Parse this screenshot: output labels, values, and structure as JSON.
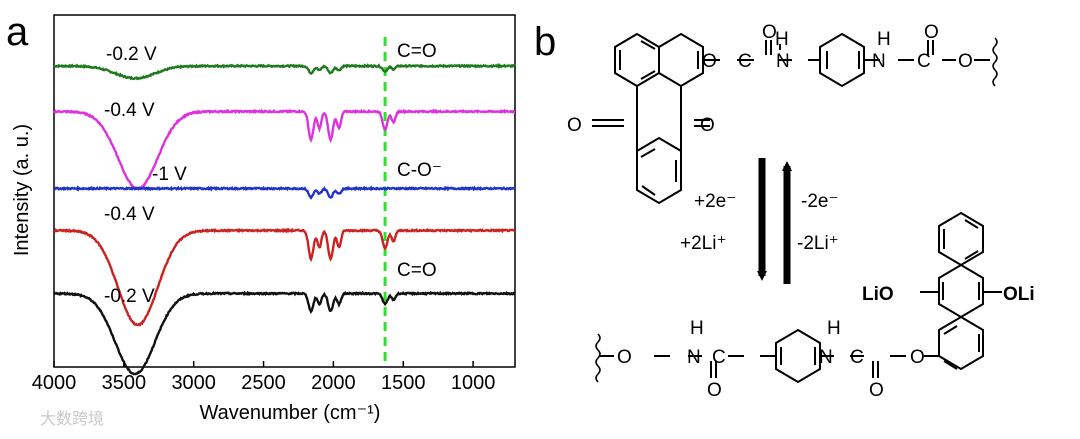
{
  "panel_a_label": "a",
  "panel_b_label": "b",
  "chart_data": {
    "type": "line",
    "title": "",
    "xlabel": "Wavenumber (cm⁻¹)",
    "ylabel": "Intensity (a. u.)",
    "xlim": [
      4000,
      700
    ],
    "x_reversed": true,
    "x_ticks": [
      4000,
      3500,
      3000,
      2500,
      2000,
      1500,
      1000
    ],
    "y_ticks_shown": false,
    "reference_line": {
      "x": 1630,
      "style": "dashed",
      "color": "#33dd33"
    },
    "series": [
      {
        "label_on_plot": "-0.2 V",
        "color": "#1f7a1f",
        "baseline": 8.6,
        "peak_broad": {
          "center": 3420,
          "depth": 0.35
        },
        "peaks_sharp": [
          {
            "center": 2160,
            "depth": 0.2
          },
          {
            "center": 2020,
            "depth": 0.2
          },
          {
            "center": 1630,
            "depth": 0.15
          }
        ]
      },
      {
        "label_on_plot": "-0.4 V",
        "color": "#dd33dd",
        "baseline": 7.3,
        "peak_broad": {
          "center": 3400,
          "depth": 2.2
        },
        "peaks_sharp": [
          {
            "center": 2160,
            "depth": 0.8
          },
          {
            "center": 2020,
            "depth": 0.8
          },
          {
            "center": 1630,
            "depth": 0.5
          }
        ]
      },
      {
        "label_on_plot": "-1 V",
        "color": "#2233cc",
        "baseline": 5.1,
        "peak_broad": null,
        "peaks_sharp": [
          {
            "center": 2160,
            "depth": 0.25
          },
          {
            "center": 2020,
            "depth": 0.25
          }
        ]
      },
      {
        "label_on_plot": "-0.4 V",
        "color": "#cc2222",
        "baseline": 3.9,
        "peak_broad": {
          "center": 3400,
          "depth": 2.7
        },
        "peaks_sharp": [
          {
            "center": 2160,
            "depth": 0.8
          },
          {
            "center": 2020,
            "depth": 0.8
          },
          {
            "center": 1630,
            "depth": 0.5
          }
        ]
      },
      {
        "label_on_plot": "-0.2 V",
        "color": "#111111",
        "baseline": 2.1,
        "peak_broad": {
          "center": 3420,
          "depth": 2.3
        },
        "peaks_sharp": [
          {
            "center": 2160,
            "depth": 0.5
          },
          {
            "center": 2020,
            "depth": 0.5
          },
          {
            "center": 1630,
            "depth": 0.3
          }
        ]
      }
    ],
    "annotations": [
      "C=O",
      "C-O⁻",
      "C=O"
    ]
  },
  "scheme": {
    "forward": [
      "+2e⁻",
      "+2Li⁺"
    ],
    "reverse": [
      "-2e⁻",
      "-2Li⁺"
    ],
    "atoms": {
      "O": "O",
      "C": "C",
      "N": "N",
      "H": "H",
      "LiO": "LiO",
      "OLi": "OLi"
    }
  },
  "watermark": "大数跨境"
}
